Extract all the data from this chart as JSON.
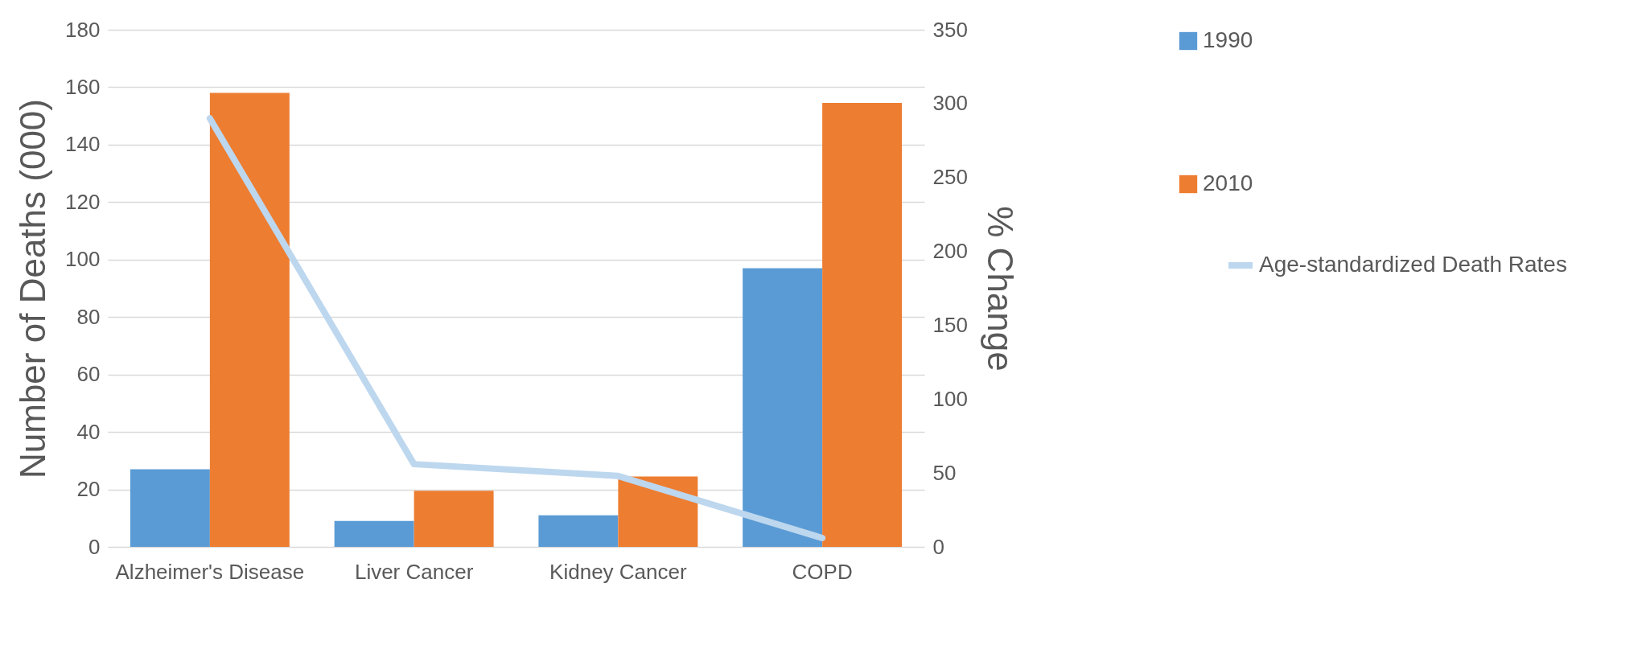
{
  "chart_data": {
    "type": "bar",
    "categories": [
      "Alzheimer's Disease",
      "Liver Cancer",
      "Kidney Cancer",
      "COPD"
    ],
    "ylabel": "Number of Deaths (000)",
    "y2label": "% Change",
    "ylim": [
      0,
      180
    ],
    "yticks": [
      0,
      20,
      40,
      60,
      80,
      100,
      120,
      140,
      160,
      180
    ],
    "y2lim": [
      0,
      350
    ],
    "y2ticks": [
      0,
      50,
      100,
      150,
      200,
      250,
      300,
      350
    ],
    "grid": "y",
    "legend": "right",
    "line_style": "solid",
    "series": [
      {
        "name": "1990",
        "color": "#5b9bd5",
        "values": [
          27,
          9,
          11,
          97
        ]
      },
      {
        "name": "2010",
        "color": "#ed7d31",
        "values": [
          158,
          19.5,
          24.5,
          154.5
        ]
      },
      {
        "name": "Age-standardized Death Rates",
        "type": "line",
        "axis": "y2",
        "color": "#bdd7ee",
        "values": [
          290,
          56,
          48,
          6
        ]
      }
    ]
  }
}
